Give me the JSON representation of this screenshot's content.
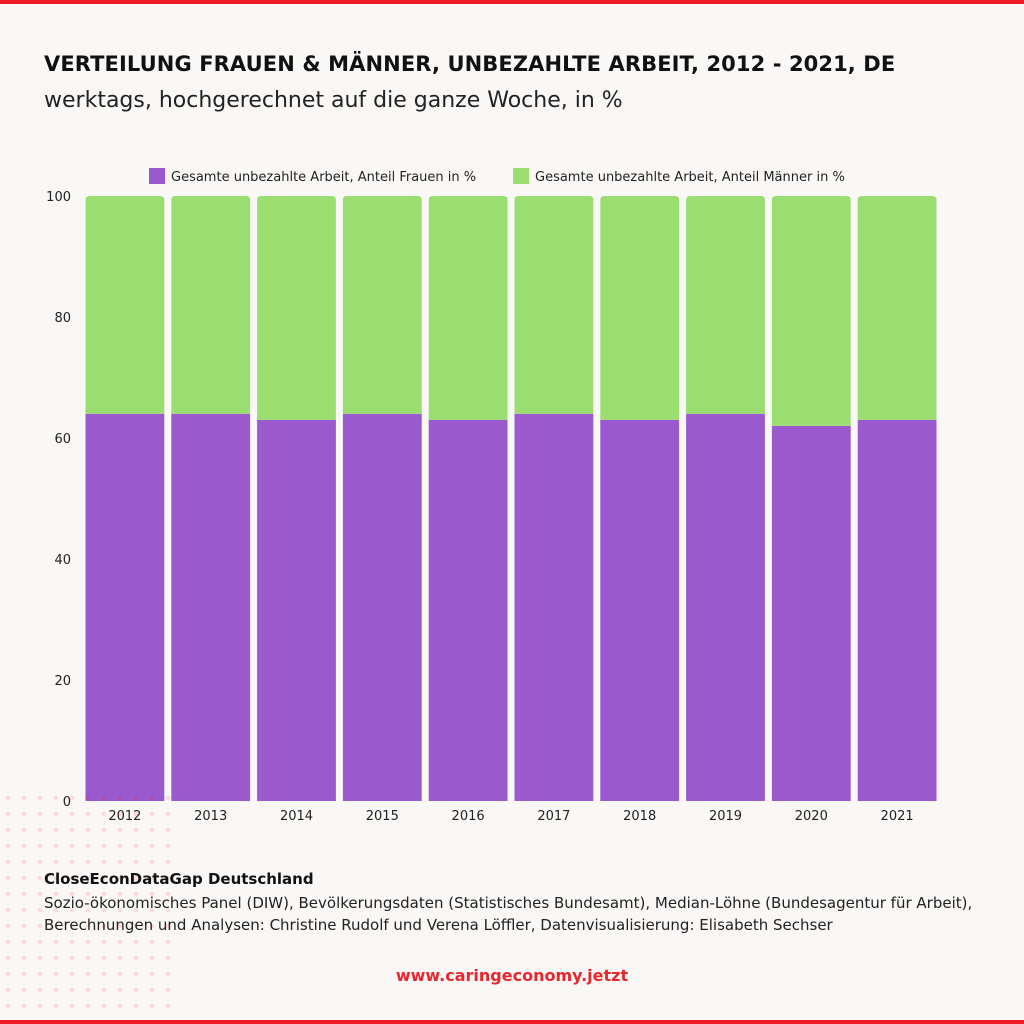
{
  "header": {
    "title": "VERTEILUNG FRAUEN & MÄNNER, UNBEZAHLTE ARBEIT, 2012 - 2021, DE",
    "subtitle": "werktags, hochgerechnet auf die ganze Woche, in %"
  },
  "chart_data": {
    "type": "bar",
    "stacked": true,
    "categories": [
      "2012",
      "2013",
      "2014",
      "2015",
      "2016",
      "2017",
      "2018",
      "2019",
      "2020",
      "2021"
    ],
    "series": [
      {
        "name": "Gesamte unbezahlte Arbeit, Anteil Frauen in %",
        "color": "#9a59cd",
        "values": [
          64,
          64,
          63,
          64,
          63,
          64,
          63,
          64,
          62,
          63
        ]
      },
      {
        "name": "Gesamte unbezahlte Arbeit, Anteil Männer in %",
        "color": "#9ade72",
        "values": [
          36,
          36,
          37,
          36,
          37,
          36,
          37,
          36,
          38,
          37
        ]
      }
    ],
    "y_ticks": [
      "0",
      "20",
      "40",
      "60",
      "80",
      "100"
    ],
    "ylim": [
      0,
      100
    ],
    "grid": false,
    "legend": "top"
  },
  "footer": {
    "source_title": "CloseEconDataGap Deutschland",
    "source_text": "Sozio-ökonomisches Panel (DIW), Bevölkerungsdaten (Statistisches Bundesamt), Median-Löhne (Bundesagentur für Arbeit), Berechnungen und Analysen: Christine Rudolf und Verena Löffler, Datenvisualisierung: Elisabeth Sechser",
    "url": "www.caringeconomy.jetzt"
  },
  "colors": {
    "accent": "#ee1c25",
    "frauen": "#9a59cd",
    "maenner": "#9ade72",
    "background": "#faf8f6"
  }
}
